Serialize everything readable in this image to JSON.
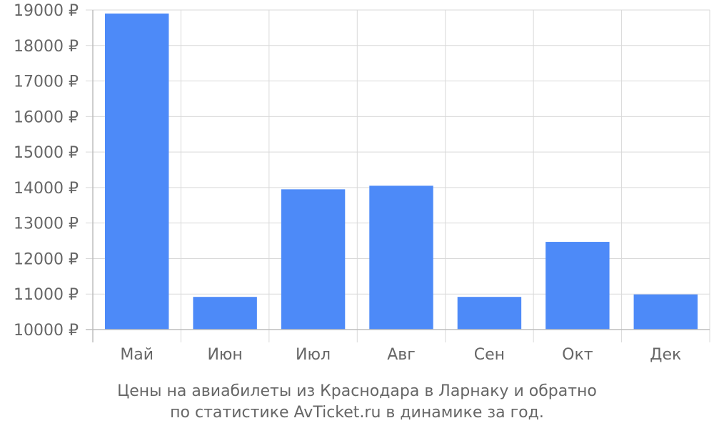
{
  "chart_data": {
    "type": "bar",
    "categories": [
      "Май",
      "Июн",
      "Июл",
      "Авг",
      "Сен",
      "Окт",
      "Дек"
    ],
    "values": [
      18900,
      10920,
      13950,
      14050,
      10920,
      12470,
      10990
    ],
    "y_ticks": [
      "10000 ₽",
      "11000 ₽",
      "12000 ₽",
      "13000 ₽",
      "14000 ₽",
      "15000 ₽",
      "16000 ₽",
      "17000 ₽",
      "18000 ₽",
      "19000 ₽"
    ],
    "ylim": [
      10000,
      19000
    ],
    "grid": true,
    "bar_color": "#4d8af8",
    "caption_lines": [
      "Цены на авиабилеты из Краснодара в Ларнаку и обратно",
      "по статистике AvTicket.ru в динамике за год."
    ]
  }
}
